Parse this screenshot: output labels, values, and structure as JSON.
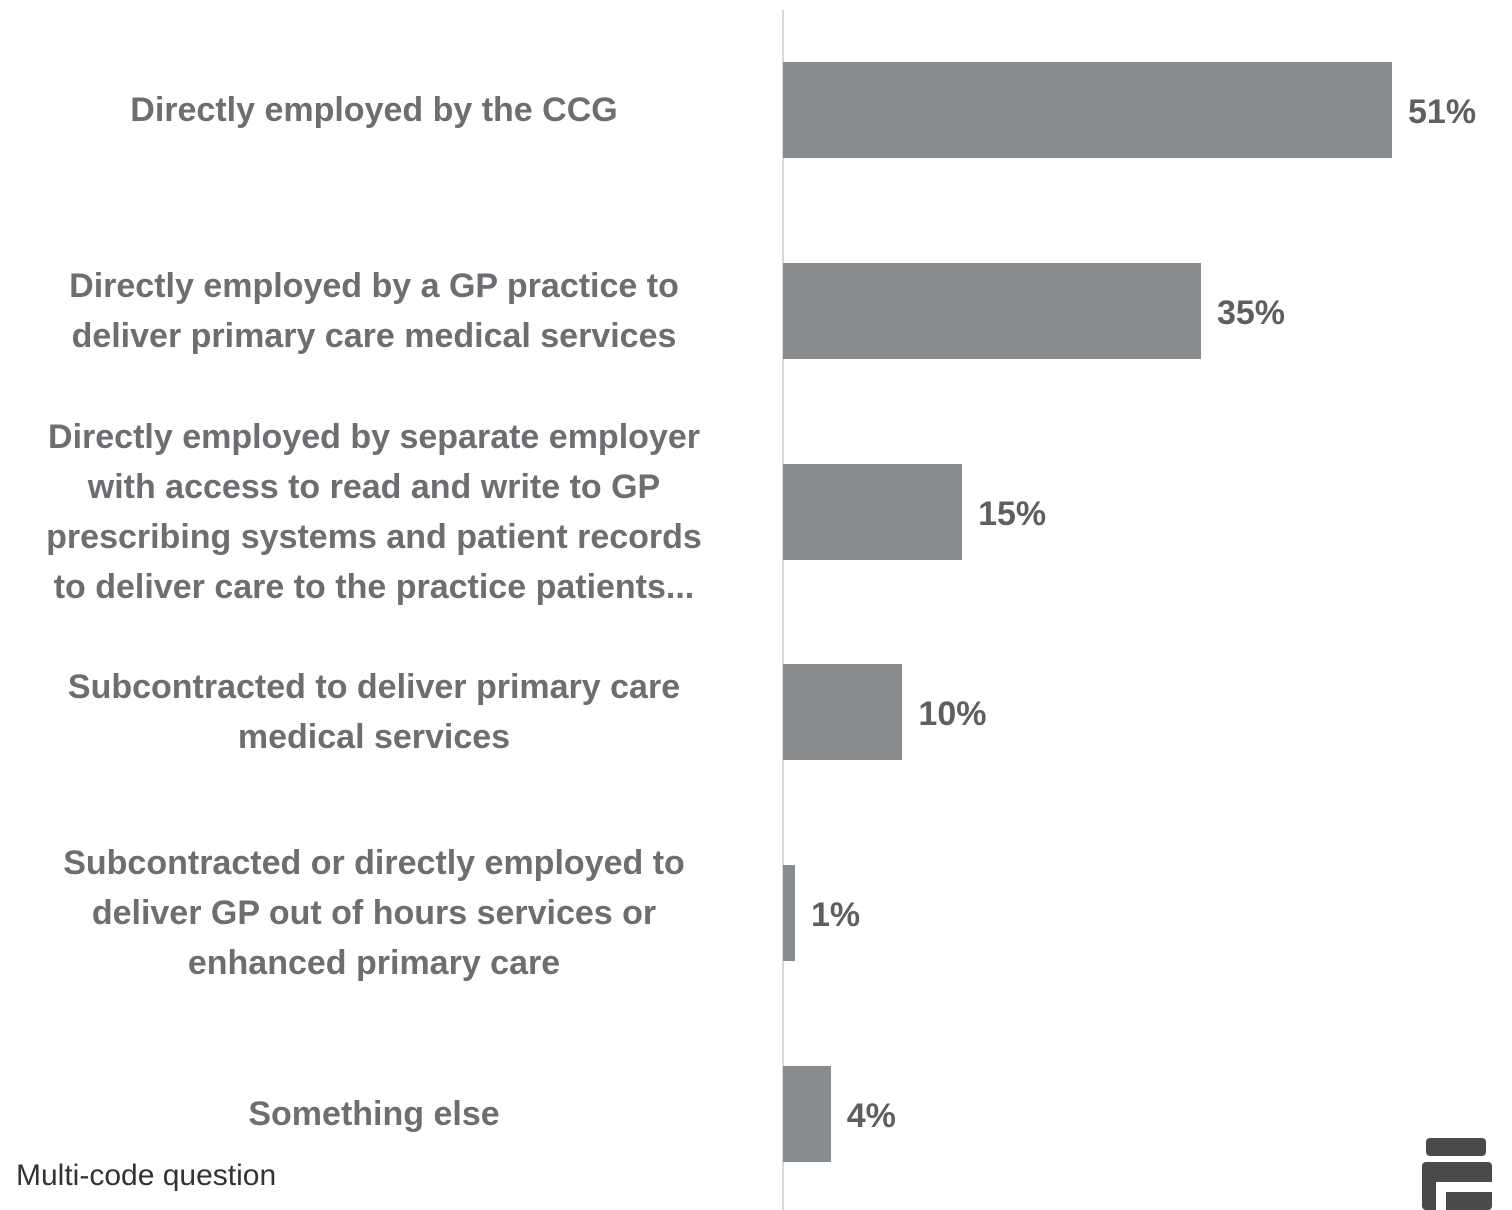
{
  "chart_data": {
    "type": "bar",
    "orientation": "horizontal",
    "categories": [
      "Directly employed by the CCG",
      "Directly employed by a GP practice to deliver primary care medical services",
      "Directly employed by separate employer with access to read and write to GP prescribing systems and patient records to deliver care to the practice patients...",
      "Subcontracted to deliver primary care medical services",
      "Subcontracted or directly employed to deliver GP out of hours services or enhanced primary care",
      "Something else"
    ],
    "category_lines": [
      [
        "Directly employed by the CCG"
      ],
      [
        "Directly employed by a GP practice to",
        "deliver primary care medical services"
      ],
      [
        "Directly employed by separate employer",
        "with access to read and write to GP",
        "prescribing systems and patient records",
        "to deliver care to the practice patients..."
      ],
      [
        "Subcontracted to deliver primary care",
        "medical services"
      ],
      [
        "Subcontracted or directly employed to",
        "deliver GP out of hours services or",
        "enhanced primary care"
      ],
      [
        "Something else"
      ]
    ],
    "values": [
      51,
      35,
      15,
      10,
      1,
      4
    ],
    "value_labels": [
      "51%",
      "35%",
      "15%",
      "10%",
      "1%",
      "4%"
    ],
    "xlim": [
      0,
      51
    ],
    "bar_color": "#898c8e",
    "grid": false,
    "legend": "none"
  },
  "footnote": "Multi-code question",
  "logo_icon": "brand-logo-icon"
}
